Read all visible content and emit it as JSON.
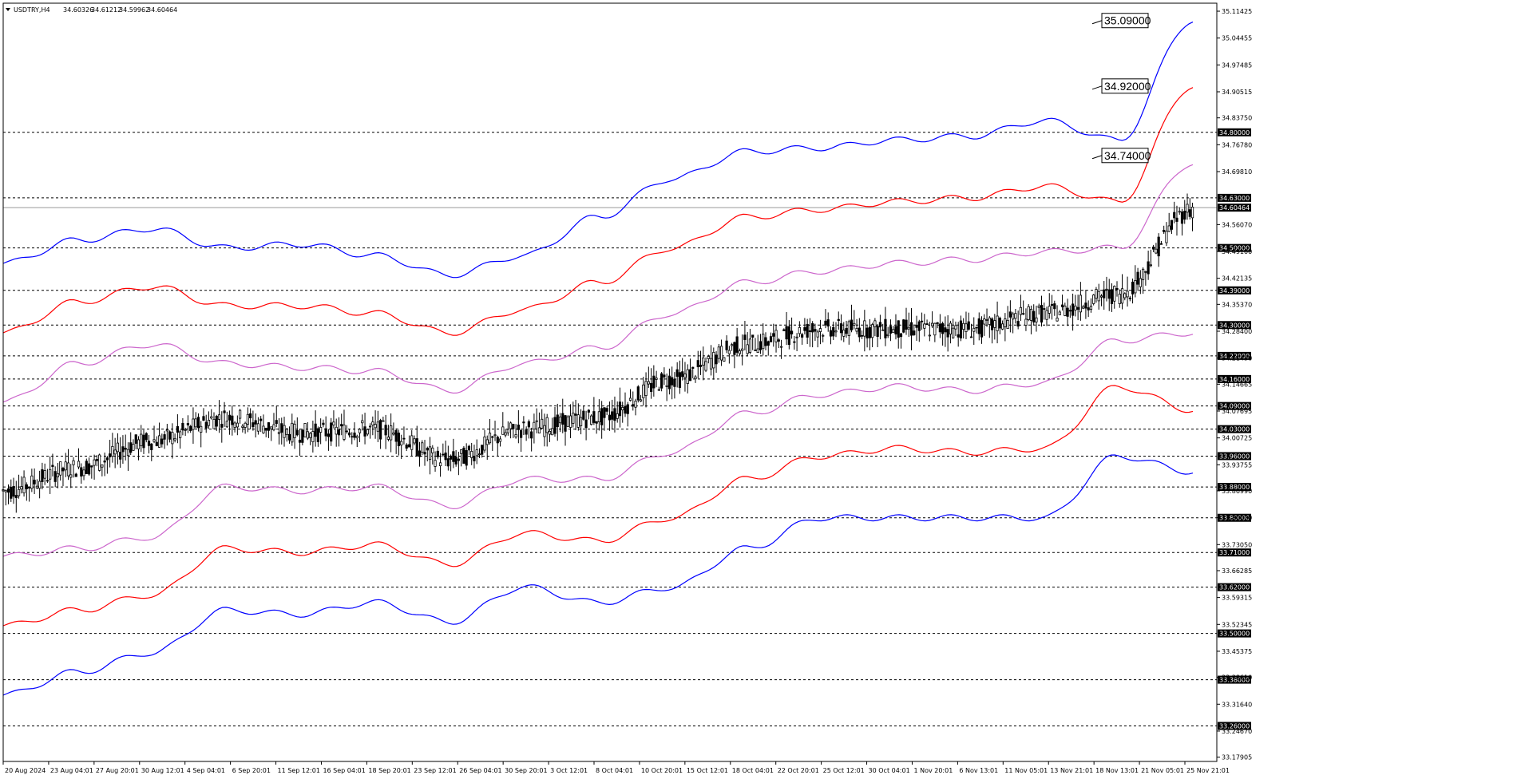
{
  "chart_data": {
    "type": "candlestick",
    "symbol_header": "USDTRY,H4",
    "ohlc_header": {
      "open": "34.60326",
      "high": "34.61212",
      "low": "34.59962",
      "close": "34.60464"
    },
    "ylim": [
      33.1679,
      35.135
    ],
    "y_ticks": [
      "35.11425",
      "35.04455",
      "34.97485",
      "34.90515",
      "34.83750",
      "34.76780",
      "34.69810",
      "34.56070",
      "34.49100",
      "34.42135",
      "34.35370",
      "34.28400",
      "34.21430",
      "34.14665",
      "34.07695",
      "34.00725",
      "33.93755",
      "33.86990",
      "33.80020",
      "33.73050",
      "33.66285",
      "33.59315",
      "33.52345",
      "33.45375",
      "33.38610",
      "33.31640",
      "33.24670",
      "33.17905"
    ],
    "x_labels": [
      "20 Aug 2024",
      "23 Aug 04:01",
      "27 Aug 20:01",
      "30 Aug 12:01",
      "4 Sep 04:01",
      "6 Sep 20:01",
      "11 Sep 12:01",
      "16 Sep 04:01",
      "18 Sep 20:01",
      "23 Sep 12:01",
      "26 Sep 04:01",
      "30 Sep 20:01",
      "3 Oct 12:01",
      "8 Oct 04:01",
      "10 Oct 20:01",
      "15 Oct 12:01",
      "18 Oct 04:01",
      "22 Oct 20:01",
      "25 Oct 12:01",
      "30 Oct 04:01",
      "1 Nov 20:01",
      "6 Nov 13:01",
      "11 Nov 05:01",
      "13 Nov 21:01",
      "18 Nov 13:01",
      "21 Nov 05:01",
      "25 Nov 21:01"
    ],
    "horizontal_levels": [
      "34.80000",
      "34.63000",
      "34.50000",
      "34.39000",
      "34.30000",
      "34.22000",
      "34.16000",
      "34.09000",
      "34.03000",
      "33.96000",
      "33.88000",
      "33.80000",
      "33.71000",
      "33.62000",
      "33.50000",
      "33.38000",
      "33.26000"
    ],
    "current_price": "34.60464",
    "annotations": [
      {
        "text": "35.09000",
        "price": 35.09
      },
      {
        "text": "34.92000",
        "price": 34.92
      },
      {
        "text": "34.74000",
        "price": 34.74
      }
    ],
    "series": [
      {
        "role": "price",
        "color": "#000000",
        "x": [
          0,
          10,
          20,
          30,
          40,
          50,
          60,
          70,
          80,
          90,
          100,
          110,
          120,
          130,
          140,
          150,
          160
        ],
        "y": [
          33.87,
          33.93,
          34.0,
          34.06,
          34.02,
          34.03,
          33.95,
          34.03,
          34.06,
          34.16,
          34.25,
          34.29,
          34.29,
          34.29,
          34.33,
          34.38,
          34.6
        ]
      },
      {
        "role": "mid-band",
        "color": "#7a7a7a",
        "x": [
          0,
          10,
          20,
          30,
          40,
          50,
          60,
          70,
          80,
          90,
          100,
          110,
          120,
          130,
          140,
          150,
          160
        ],
        "y": [
          33.9,
          33.96,
          34.0,
          34.04,
          34.03,
          34.03,
          33.98,
          34.05,
          34.07,
          34.15,
          34.24,
          34.28,
          34.3,
          34.3,
          34.32,
          34.38,
          34.5
        ]
      },
      {
        "role": "band-1-upper",
        "color": "#cc66cc",
        "x": [
          0,
          10,
          20,
          30,
          40,
          50,
          60,
          70,
          80,
          90,
          100,
          110,
          120,
          130,
          140,
          150,
          160
        ],
        "y": [
          34.1,
          34.2,
          34.25,
          34.2,
          34.19,
          34.18,
          34.13,
          34.2,
          34.24,
          34.33,
          34.41,
          34.44,
          34.46,
          34.47,
          34.49,
          34.5,
          34.72
        ]
      },
      {
        "role": "band-1-lower",
        "color": "#cc66cc",
        "x": [
          0,
          10,
          20,
          30,
          40,
          50,
          60,
          70,
          80,
          90,
          100,
          110,
          120,
          130,
          140,
          150,
          160
        ],
        "y": [
          33.7,
          33.72,
          33.75,
          33.88,
          33.87,
          33.88,
          33.83,
          33.9,
          33.9,
          33.97,
          34.07,
          34.12,
          34.14,
          34.13,
          34.15,
          34.26,
          34.28
        ]
      },
      {
        "role": "band-2-upper",
        "color": "#ff0000",
        "x": [
          0,
          10,
          20,
          30,
          40,
          50,
          60,
          70,
          80,
          90,
          100,
          110,
          120,
          130,
          140,
          150,
          160
        ],
        "y": [
          34.28,
          34.36,
          34.4,
          34.35,
          34.35,
          34.33,
          34.28,
          34.34,
          34.41,
          34.5,
          34.58,
          34.6,
          34.62,
          34.63,
          34.66,
          34.62,
          34.92
        ]
      },
      {
        "role": "band-2-lower",
        "color": "#ff0000",
        "x": [
          0,
          10,
          20,
          30,
          40,
          50,
          60,
          70,
          80,
          90,
          100,
          110,
          120,
          130,
          140,
          150,
          160
        ],
        "y": [
          33.52,
          33.56,
          33.6,
          33.72,
          33.71,
          33.73,
          33.68,
          33.76,
          33.74,
          33.8,
          33.9,
          33.96,
          33.98,
          33.97,
          33.98,
          34.14,
          34.08
        ]
      },
      {
        "role": "band-3-upper",
        "color": "#0000ff",
        "x": [
          0,
          10,
          20,
          30,
          40,
          50,
          60,
          70,
          80,
          90,
          100,
          110,
          120,
          130,
          140,
          150,
          160
        ],
        "y": [
          34.46,
          34.52,
          34.55,
          34.5,
          34.51,
          34.48,
          34.43,
          34.48,
          34.58,
          34.68,
          34.75,
          34.76,
          34.78,
          34.79,
          34.83,
          34.78,
          35.09
        ]
      },
      {
        "role": "band-3-lower",
        "color": "#0000ff",
        "x": [
          0,
          10,
          20,
          30,
          40,
          50,
          60,
          70,
          80,
          90,
          100,
          110,
          120,
          130,
          140,
          150,
          160
        ],
        "y": [
          33.34,
          33.4,
          33.45,
          33.56,
          33.55,
          33.58,
          33.53,
          33.62,
          33.58,
          33.62,
          33.72,
          33.8,
          33.8,
          33.8,
          33.8,
          33.96,
          33.92
        ]
      }
    ]
  }
}
